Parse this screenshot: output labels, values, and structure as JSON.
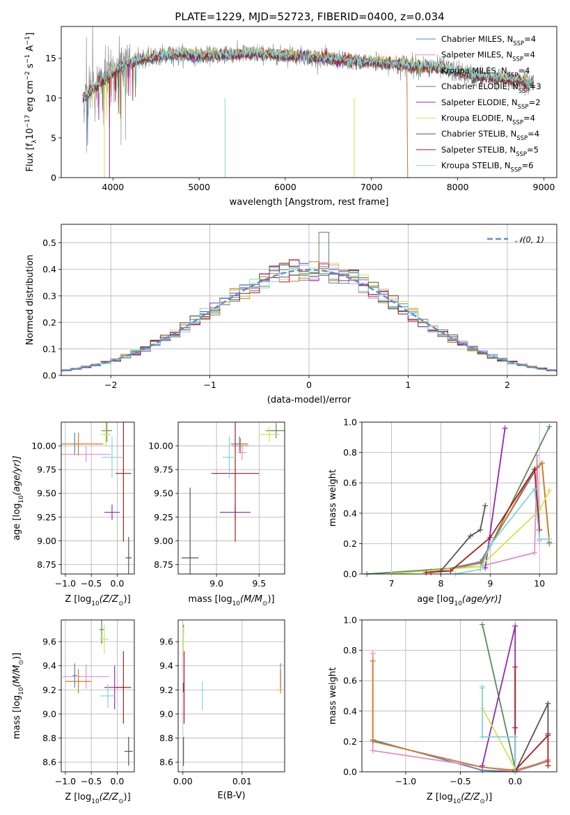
{
  "figure_title": "PLATE=1229, MJD=52723, FIBERID=0400, z=0.034",
  "colors": {
    "Chabrier MILES": "#4e86c6",
    "Salpeter MILES": "#e48fc4",
    "Kroupa MILES": "#d67a1c",
    "Chabrier ELODIE": "#5a8a5a",
    "Salpeter ELODIE": "#9328b0",
    "Kroupa ELODIE": "#cfe64a",
    "Chabrier STELIB": "#555555",
    "Salpeter STELIB": "#a81e1e",
    "Kroupa STELIB": "#7fd6dc"
  },
  "chart_data": [
    {
      "id": "spectrum",
      "type": "line",
      "title": "PLATE=1229, MJD=52723, FIBERID=0400, z=0.034",
      "xlabel": "wavelength [Angstrom, rest frame]",
      "ylabel": "Flux [f",
      "ylabel_sub": "λ",
      "ylabel_rest": "10",
      "ylabel_sup": "−17",
      "ylabel_tail": " erg cm",
      "ylabel_sup2": "−2",
      "ylabel_tail2": " s",
      "ylabel_sup3": "−1",
      "ylabel_tail3": " A",
      "ylabel_sup4": "−1",
      "ylabel_end": "]",
      "xlim": [
        3400,
        9150
      ],
      "ylim": [
        0,
        19
      ],
      "xticks": [
        4000,
        5000,
        6000,
        7000,
        8000,
        9000
      ],
      "yticks": [
        0,
        5,
        10,
        15
      ],
      "legend_position": "top-right",
      "series": [
        {
          "name": "Chabrier MILES",
          "nssp": "4"
        },
        {
          "name": "Salpeter MILES",
          "nssp": "4"
        },
        {
          "name": "Kroupa MILES",
          "nssp": "4"
        },
        {
          "name": "Chabrier ELODIE",
          "nssp": "3"
        },
        {
          "name": "Salpeter ELODIE",
          "nssp": "2"
        },
        {
          "name": "Kroupa ELODIE",
          "nssp": "4"
        },
        {
          "name": "Chabrier STELIB",
          "nssp": "4"
        },
        {
          "name": "Salpeter STELIB",
          "nssp": "5"
        },
        {
          "name": "Kroupa STELIB",
          "nssp": "6"
        }
      ],
      "legend_n_prefix": "N",
      "legend_n_sub": "SSP",
      "continuum_x": [
        3650,
        3800,
        3950,
        4100,
        4300,
        4500,
        4800,
        5000,
        5300,
        5600,
        6000,
        6300,
        6600,
        7000,
        7400,
        7800,
        8200,
        8600,
        8850
      ],
      "continuum_y": [
        10.0,
        11.5,
        12.8,
        14.0,
        14.8,
        15.2,
        15.6,
        15.3,
        15.5,
        15.6,
        15.4,
        15.2,
        14.8,
        14.5,
        14.2,
        13.8,
        12.8,
        12.3,
        12.0
      ]
    },
    {
      "id": "residuals",
      "type": "histogram",
      "xlabel": "(data-model)/error",
      "ylabel": "Normed distribution",
      "xlim": [
        -2.5,
        2.5
      ],
      "ylim": [
        0,
        0.57
      ],
      "xticks": [
        -2,
        -1,
        0,
        1,
        2
      ],
      "yticks": [
        0.0,
        0.1,
        0.2,
        0.3,
        0.4,
        0.5
      ],
      "grid": true,
      "legend_position": "top-right",
      "normal_label": "𝒩(0, 1)",
      "bin_width": 0.1
    },
    {
      "id": "age_vs_Z",
      "type": "errorbar",
      "xlabel": "Z [log",
      "xlabel_sub": "10",
      "xlabel_rest": "(Z/Z",
      "xlabel_sub2": "⊙",
      "xlabel_end": ")]",
      "ylabel": "age  [log",
      "ylabel_sub": "10",
      "ylabel_rest": "(age/yr)]",
      "xlim": [
        -1.08,
        0.33
      ],
      "ylim": [
        8.65,
        10.25
      ],
      "xticks": [
        -1.0,
        -0.5,
        0.0
      ],
      "yticks": [
        8.75,
        9.0,
        9.25,
        9.5,
        9.75,
        10.0
      ],
      "grid": true,
      "points": [
        {
          "series": "Chabrier MILES",
          "x": -0.82,
          "xerr": 0.04,
          "y": 10.02,
          "yerr": 0.12
        },
        {
          "series": "Salpeter MILES",
          "x": -0.6,
          "xerr": 0.48,
          "y": 9.91,
          "yerr": 0.08
        },
        {
          "series": "Kroupa MILES",
          "x": -0.75,
          "xerr": 0.48,
          "y": 10.02,
          "yerr": 0.12
        },
        {
          "series": "Chabrier ELODIE",
          "x": -0.2,
          "xerr": 0.1,
          "y": 10.16,
          "yerr": 0.12
        },
        {
          "series": "Salpeter ELODIE",
          "x": -0.1,
          "xerr": 0.15,
          "y": 9.3,
          "yerr": 0.08
        },
        {
          "series": "Kroupa ELODIE",
          "x": -0.22,
          "xerr": 0.1,
          "y": 10.12,
          "yerr": 0.12
        },
        {
          "series": "Chabrier STELIB",
          "x": 0.22,
          "xerr": 0.06,
          "y": 8.82,
          "yerr": 0.22
        },
        {
          "series": "Salpeter STELIB",
          "x": 0.12,
          "xerr": 0.15,
          "y": 9.71,
          "yerr": 0.72
        },
        {
          "series": "Kroupa STELIB",
          "x": -0.1,
          "xerr": 0.2,
          "y": 9.88,
          "yerr": 0.22
        }
      ]
    },
    {
      "id": "age_vs_mass",
      "type": "errorbar",
      "xlabel": "mass [log",
      "xlabel_sub": "10",
      "xlabel_rest": "(M/M",
      "xlabel_sub2": "⊙",
      "xlabel_end": ")]",
      "xlim": [
        8.55,
        9.8
      ],
      "ylim": [
        8.65,
        10.25
      ],
      "xticks": [
        9.0,
        9.5
      ],
      "yticks": [
        8.75,
        9.0,
        9.25,
        9.5,
        9.75,
        10.0
      ],
      "grid": true,
      "points": [
        {
          "series": "Chabrier MILES",
          "x": 9.27,
          "xerr": 0.1,
          "y": 10.02,
          "yerr": 0.08
        },
        {
          "series": "Salpeter MILES",
          "x": 9.3,
          "xerr": 0.05,
          "y": 9.93,
          "yerr": 0.08
        },
        {
          "series": "Kroupa MILES",
          "x": 9.28,
          "xerr": 0.1,
          "y": 10.0,
          "yerr": 0.08
        },
        {
          "series": "Chabrier ELODIE",
          "x": 9.7,
          "xerr": 0.12,
          "y": 10.16,
          "yerr": 0.08
        },
        {
          "series": "Salpeter ELODIE",
          "x": 9.22,
          "xerr": 0.18,
          "y": 9.3,
          "yerr": 0.08
        },
        {
          "series": "Kroupa ELODIE",
          "x": 9.62,
          "xerr": 0.12,
          "y": 10.12,
          "yerr": 0.08
        },
        {
          "series": "Chabrier STELIB",
          "x": 8.69,
          "xerr": 0.1,
          "y": 8.82,
          "yerr": 0.74
        },
        {
          "series": "Salpeter STELIB",
          "x": 9.22,
          "xerr": 0.28,
          "y": 9.71,
          "yerr": 0.72
        },
        {
          "series": "Kroupa STELIB",
          "x": 9.15,
          "xerr": 0.08,
          "y": 9.88,
          "yerr": 0.22
        }
      ]
    },
    {
      "id": "weight_vs_age",
      "type": "line",
      "xlabel": "age  [log",
      "xlabel_sub": "10",
      "xlabel_rest": "(age/yr)]",
      "ylabel": "mass weight",
      "xlim": [
        6.4,
        10.35
      ],
      "ylim": [
        0,
        1.0
      ],
      "xticks": [
        7,
        8,
        9,
        10
      ],
      "yticks": [
        0.0,
        0.2,
        0.4,
        0.6,
        0.8,
        1.0
      ],
      "grid": true,
      "series": [
        {
          "name": "Chabrier MILES",
          "x": [
            7.8,
            8.8,
            9.95,
            10.05,
            10.2
          ],
          "y": [
            0.01,
            0.08,
            0.7,
            0.73,
            0.21
          ]
        },
        {
          "name": "Salpeter MILES",
          "x": [
            7.8,
            8.8,
            9.9,
            9.95,
            10.0
          ],
          "y": [
            0.02,
            0.05,
            0.14,
            0.78,
            0.22
          ]
        },
        {
          "name": "Kroupa MILES",
          "x": [
            7.8,
            8.8,
            9.9,
            10.05,
            10.2
          ],
          "y": [
            0.01,
            0.07,
            0.69,
            0.73,
            0.2
          ]
        },
        {
          "name": "Chabrier ELODIE",
          "x": [
            6.5,
            8.8,
            10.2
          ],
          "y": [
            0.0,
            0.05,
            0.97
          ]
        },
        {
          "name": "Salpeter ELODIE",
          "x": [
            8.9,
            9.3
          ],
          "y": [
            0.04,
            0.96
          ]
        },
        {
          "name": "Kroupa ELODIE",
          "x": [
            7.0,
            8.8,
            10.0,
            10.2
          ],
          "y": [
            0.0,
            0.05,
            0.42,
            0.55
          ]
        },
        {
          "name": "Chabrier STELIB",
          "x": [
            8.0,
            8.6,
            8.8,
            8.9
          ],
          "y": [
            0.02,
            0.25,
            0.29,
            0.45
          ]
        },
        {
          "name": "Salpeter STELIB",
          "x": [
            7.7,
            8.2,
            9.0,
            9.9,
            10.0
          ],
          "y": [
            0.01,
            0.02,
            0.24,
            0.69,
            0.29
          ]
        },
        {
          "name": "Kroupa STELIB",
          "x": [
            8.3,
            8.8,
            9.0,
            9.9,
            10.0,
            10.2
          ],
          "y": [
            0.0,
            0.03,
            0.19,
            0.56,
            0.23,
            0.23
          ]
        }
      ]
    },
    {
      "id": "mass_vs_Z",
      "type": "errorbar",
      "xlabel": "Z [log",
      "xlabel_sub": "10",
      "xlabel_rest": "(Z/Z",
      "xlabel_sub2": "⊙",
      "xlabel_end": ")]",
      "ylabel": "mass [log",
      "ylabel_sub": "10",
      "ylabel_rest": "(M/M",
      "ylabel_sub2": "⊙",
      "ylabel_end": ")]",
      "xlim": [
        -1.08,
        0.33
      ],
      "ylim": [
        8.52,
        9.78
      ],
      "xticks": [
        -1.0,
        -0.5,
        0.0
      ],
      "yticks": [
        8.6,
        8.8,
        9.0,
        9.2,
        9.4,
        9.6
      ],
      "grid": true,
      "points": [
        {
          "series": "Chabrier MILES",
          "x": -0.82,
          "xerr": 0.04,
          "y": 9.32,
          "yerr": 0.1
        },
        {
          "series": "Salpeter MILES",
          "x": -0.6,
          "xerr": 0.45,
          "y": 9.31,
          "yerr": 0.1
        },
        {
          "series": "Kroupa MILES",
          "x": -0.75,
          "xerr": 0.25,
          "y": 9.27,
          "yerr": 0.1
        },
        {
          "series": "Chabrier ELODIE",
          "x": -0.3,
          "xerr": 0.04,
          "y": 9.7,
          "yerr": 0.12
        },
        {
          "series": "Salpeter ELODIE",
          "x": -0.05,
          "xerr": 0.2,
          "y": 9.22,
          "yerr": 0.18
        },
        {
          "series": "Kroupa ELODIE",
          "x": -0.25,
          "xerr": 0.08,
          "y": 9.62,
          "yerr": 0.12
        },
        {
          "series": "Chabrier STELIB",
          "x": 0.22,
          "xerr": 0.08,
          "y": 8.69,
          "yerr": 0.12
        },
        {
          "series": "Salpeter STELIB",
          "x": 0.12,
          "xerr": 0.15,
          "y": 9.22,
          "yerr": 0.3
        },
        {
          "series": "Kroupa STELIB",
          "x": -0.18,
          "xerr": 0.15,
          "y": 9.15,
          "yerr": 0.1
        }
      ]
    },
    {
      "id": "mass_vs_EBV",
      "type": "errorbar",
      "xlabel": "E(B-V)",
      "xlim": [
        -0.0008,
        0.0172
      ],
      "ylim": [
        8.52,
        9.78
      ],
      "xticks": [
        0.0,
        0.01
      ],
      "yticks": [
        8.6,
        8.8,
        9.0,
        9.2,
        9.4,
        9.6
      ],
      "grid": true,
      "points": [
        {
          "series": "Chabrier MILES",
          "x": 0.0165,
          "xerr": 0,
          "y": 9.32,
          "yerr": 0.1
        },
        {
          "series": "Salpeter MILES",
          "x": 0.0165,
          "xerr": 0,
          "y": 9.3,
          "yerr": 0.1
        },
        {
          "series": "Kroupa MILES",
          "x": 0.0165,
          "xerr": 0,
          "y": 9.27,
          "yerr": 0.1
        },
        {
          "series": "Chabrier ELODIE",
          "x": 0.0001,
          "xerr": 0,
          "y": 9.7,
          "yerr": 0.04
        },
        {
          "series": "Salpeter ELODIE",
          "x": 0.0001,
          "xerr": 0,
          "y": 9.22,
          "yerr": 0.04
        },
        {
          "series": "Kroupa ELODIE",
          "x": 0.0001,
          "xerr": 0,
          "y": 9.62,
          "yerr": 0.1
        },
        {
          "series": "Chabrier STELIB",
          "x": 0.0001,
          "xerr": 0,
          "y": 8.69,
          "yerr": 0.12
        },
        {
          "series": "Salpeter STELIB",
          "x": 0.0002,
          "xerr": 0,
          "y": 9.22,
          "yerr": 0.3
        },
        {
          "series": "Kroupa STELIB",
          "x": 0.0033,
          "xerr": 0,
          "y": 9.15,
          "yerr": 0.12
        }
      ]
    },
    {
      "id": "weight_vs_Z",
      "type": "line",
      "xlabel": "Z [log",
      "xlabel_sub": "10",
      "xlabel_rest": "(Z/Z",
      "xlabel_sub2": "⊙",
      "xlabel_end": ")]",
      "ylabel": "mass weight",
      "xlim": [
        -1.4,
        0.38
      ],
      "ylim": [
        0,
        1.0
      ],
      "xticks": [
        -1.0,
        -0.5,
        0.0
      ],
      "yticks": [
        0.0,
        0.2,
        0.4,
        0.6,
        0.8,
        1.0
      ],
      "grid": true,
      "series": [
        {
          "name": "Chabrier MILES",
          "x": [
            -1.3,
            -0.3,
            0.0,
            0.3
          ],
          "y": [
            0.21,
            0.01,
            0.0,
            0.07
          ]
        },
        {
          "name": "Salpeter MILES",
          "x": [
            -1.3,
            -1.3,
            0.0,
            0.3
          ],
          "y": [
            0.78,
            0.14,
            0.0,
            0.08
          ]
        },
        {
          "name": "Kroupa MILES",
          "x": [
            -1.3,
            -1.3,
            -0.3,
            0.0,
            0.3
          ],
          "y": [
            0.73,
            0.2,
            0.03,
            0.01,
            0.07
          ]
        },
        {
          "name": "Chabrier ELODIE",
          "x": [
            -0.3,
            0.0,
            0.0
          ],
          "y": [
            0.97,
            0.02,
            0.0
          ]
        },
        {
          "name": "Salpeter ELODIE",
          "x": [
            -0.3,
            0.0,
            0.0
          ],
          "y": [
            0.04,
            0.96,
            0.0
          ]
        },
        {
          "name": "Kroupa ELODIE",
          "x": [
            -0.3,
            -0.3,
            0.0,
            0.0
          ],
          "y": [
            0.55,
            0.42,
            0.02,
            0.0
          ]
        },
        {
          "name": "Chabrier STELIB",
          "x": [
            0.0,
            0.3,
            0.3
          ],
          "y": [
            0.0,
            0.45,
            0.25
          ]
        },
        {
          "name": "Salpeter STELIB",
          "x": [
            0.0,
            0.0,
            0.0,
            0.3,
            0.3
          ],
          "y": [
            0.69,
            0.29,
            0.01,
            0.24,
            0.04
          ]
        },
        {
          "name": "Kroupa STELIB",
          "x": [
            -0.3,
            -0.3,
            0.0,
            0.0
          ],
          "y": [
            0.56,
            0.23,
            0.23,
            0.0
          ]
        }
      ]
    }
  ]
}
